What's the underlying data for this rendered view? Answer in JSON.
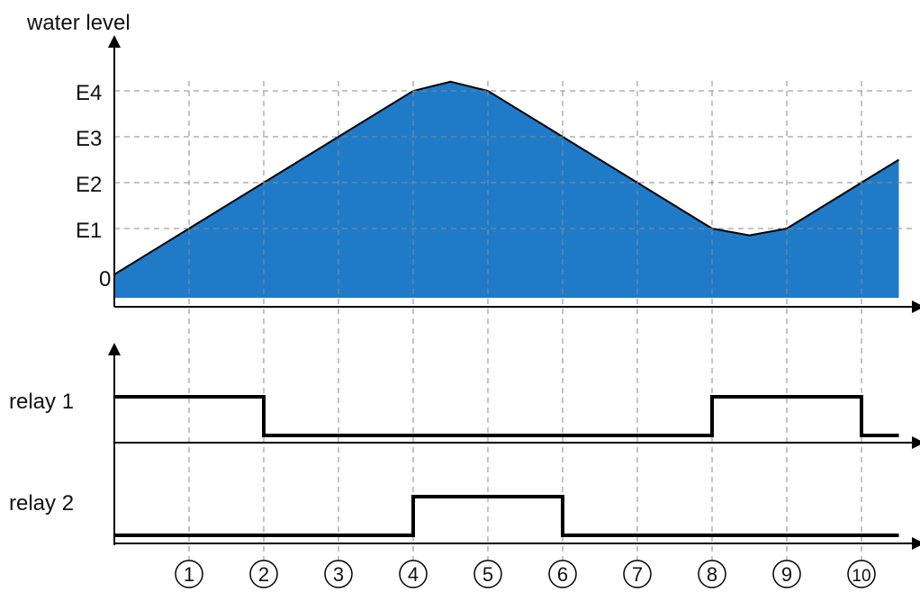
{
  "diagram": {
    "y_axis_label": "water level",
    "level_labels": [
      "0",
      "E1",
      "E2",
      "E3",
      "E4"
    ],
    "relay_labels": [
      "relay 1",
      "relay 2"
    ],
    "time_markers": [
      "1",
      "2",
      "3",
      "4",
      "5",
      "6",
      "7",
      "8",
      "9",
      "10"
    ],
    "fill_color": "#1f7bc8",
    "water_level_profile": [
      {
        "t": 0,
        "level": 0
      },
      {
        "t": 1,
        "level": 1
      },
      {
        "t": 2,
        "level": 2
      },
      {
        "t": 3,
        "level": 3
      },
      {
        "t": 4,
        "level": 4
      },
      {
        "t": 4.5,
        "level": 4.2
      },
      {
        "t": 5,
        "level": 4
      },
      {
        "t": 6,
        "level": 3
      },
      {
        "t": 7,
        "level": 2
      },
      {
        "t": 8,
        "level": 1
      },
      {
        "t": 8.5,
        "level": 0.85
      },
      {
        "t": 9,
        "level": 1
      },
      {
        "t": 10,
        "level": 2
      },
      {
        "t": 10.5,
        "level": 2.5
      }
    ],
    "relay_1_states": [
      {
        "from": 0,
        "to": 2,
        "state": "on"
      },
      {
        "from": 2,
        "to": 8,
        "state": "off"
      },
      {
        "from": 8,
        "to": 10,
        "state": "on"
      },
      {
        "from": 10,
        "to": 10.5,
        "state": "off"
      }
    ],
    "relay_2_states": [
      {
        "from": 0,
        "to": 4,
        "state": "off"
      },
      {
        "from": 4,
        "to": 6,
        "state": "on"
      },
      {
        "from": 6,
        "to": 10.5,
        "state": "off"
      }
    ]
  }
}
